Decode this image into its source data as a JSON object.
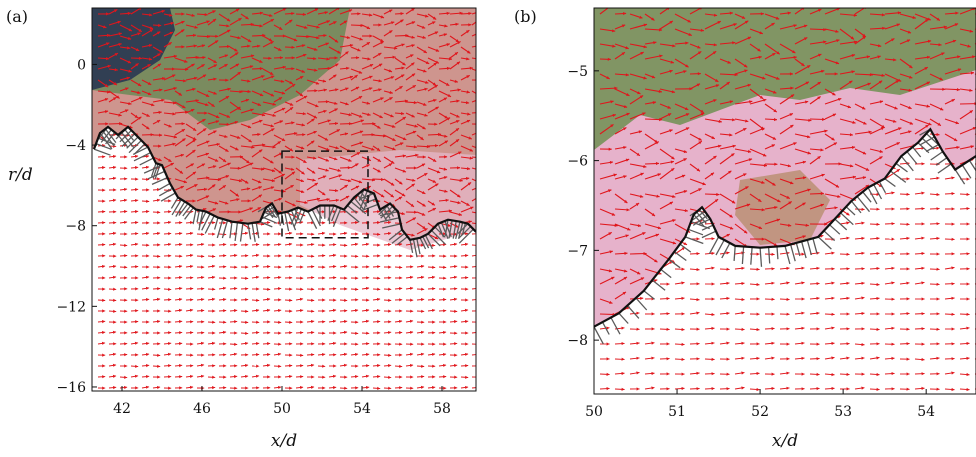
{
  "chart_data": [
    {
      "type": "vector-field",
      "panel_label": "(a)",
      "xlabel": "x/d",
      "ylabel": "r/d",
      "xlim": [
        40.5,
        59.7
      ],
      "ylim": [
        -16.2,
        2.8
      ],
      "xticks": [
        42,
        46,
        50,
        54,
        58
      ],
      "yticks": [
        0,
        -4,
        -8,
        -12,
        -16
      ],
      "xtick_labels": [
        "42",
        "46",
        "50",
        "54",
        "58"
      ],
      "ytick_labels": [
        "0",
        "−4",
        "−8",
        "−12",
        "−16"
      ],
      "inset_box": {
        "x": [
          50,
          54.3
        ],
        "y": [
          -8.6,
          -4.3
        ]
      },
      "interface": [
        [
          40.6,
          -4.2
        ],
        [
          40.9,
          -3.4
        ],
        [
          41.3,
          -3.1
        ],
        [
          41.8,
          -3.5
        ],
        [
          42.3,
          -3.1
        ],
        [
          42.8,
          -3.6
        ],
        [
          43.3,
          -4.1
        ],
        [
          43.7,
          -4.9
        ],
        [
          44.0,
          -5.0
        ],
        [
          44.4,
          -5.9
        ],
        [
          44.8,
          -6.6
        ],
        [
          45.3,
          -6.9
        ],
        [
          45.7,
          -7.2
        ],
        [
          46.2,
          -7.3
        ],
        [
          46.8,
          -7.6
        ],
        [
          47.5,
          -7.8
        ],
        [
          48.3,
          -7.9
        ],
        [
          48.9,
          -7.8
        ],
        [
          49.2,
          -7.1
        ],
        [
          49.5,
          -6.9
        ],
        [
          49.8,
          -7.4
        ],
        [
          50.3,
          -7.3
        ],
        [
          50.8,
          -7.1
        ],
        [
          51.3,
          -7.3
        ],
        [
          51.9,
          -7.0
        ],
        [
          52.6,
          -7.0
        ],
        [
          53.1,
          -7.2
        ],
        [
          53.6,
          -6.6
        ],
        [
          54.1,
          -6.2
        ],
        [
          54.6,
          -6.4
        ],
        [
          54.9,
          -7.2
        ],
        [
          55.4,
          -6.9
        ],
        [
          55.8,
          -7.3
        ],
        [
          56.0,
          -8.2
        ],
        [
          56.4,
          -8.7
        ],
        [
          56.9,
          -8.6
        ],
        [
          57.3,
          -8.4
        ],
        [
          57.8,
          -7.9
        ],
        [
          58.3,
          -7.7
        ],
        [
          58.9,
          -7.8
        ],
        [
          59.3,
          -7.9
        ],
        [
          59.7,
          -8.3
        ]
      ],
      "freestream_velocity": [
        1.0,
        0.02
      ]
    },
    {
      "type": "vector-field",
      "panel_label": "(b)",
      "xlabel": "x/d",
      "ylabel": "",
      "xlim": [
        50,
        54.6
      ],
      "ylim": [
        -8.6,
        -4.3
      ],
      "xticks": [
        50,
        51,
        52,
        53,
        54
      ],
      "yticks": [
        -5,
        -6,
        -7,
        -8
      ],
      "xtick_labels": [
        "50",
        "51",
        "52",
        "53",
        "54"
      ],
      "ytick_labels": [
        "−5",
        "−6",
        "−7",
        "−8"
      ],
      "interface": [
        [
          50.0,
          -7.85
        ],
        [
          50.3,
          -7.7
        ],
        [
          50.6,
          -7.45
        ],
        [
          50.9,
          -7.1
        ],
        [
          51.1,
          -6.85
        ],
        [
          51.2,
          -6.6
        ],
        [
          51.3,
          -6.52
        ],
        [
          51.4,
          -6.65
        ],
        [
          51.5,
          -6.85
        ],
        [
          51.7,
          -6.95
        ],
        [
          52.0,
          -6.97
        ],
        [
          52.3,
          -6.95
        ],
        [
          52.5,
          -6.9
        ],
        [
          52.7,
          -6.85
        ],
        [
          52.9,
          -6.65
        ],
        [
          53.1,
          -6.45
        ],
        [
          53.3,
          -6.3
        ],
        [
          53.5,
          -6.2
        ],
        [
          53.7,
          -5.95
        ],
        [
          53.9,
          -5.8
        ],
        [
          54.05,
          -5.65
        ],
        [
          54.2,
          -5.9
        ],
        [
          54.35,
          -6.1
        ],
        [
          54.6,
          -5.95
        ]
      ],
      "freestream_velocity": [
        1.0,
        0.01
      ]
    }
  ]
}
